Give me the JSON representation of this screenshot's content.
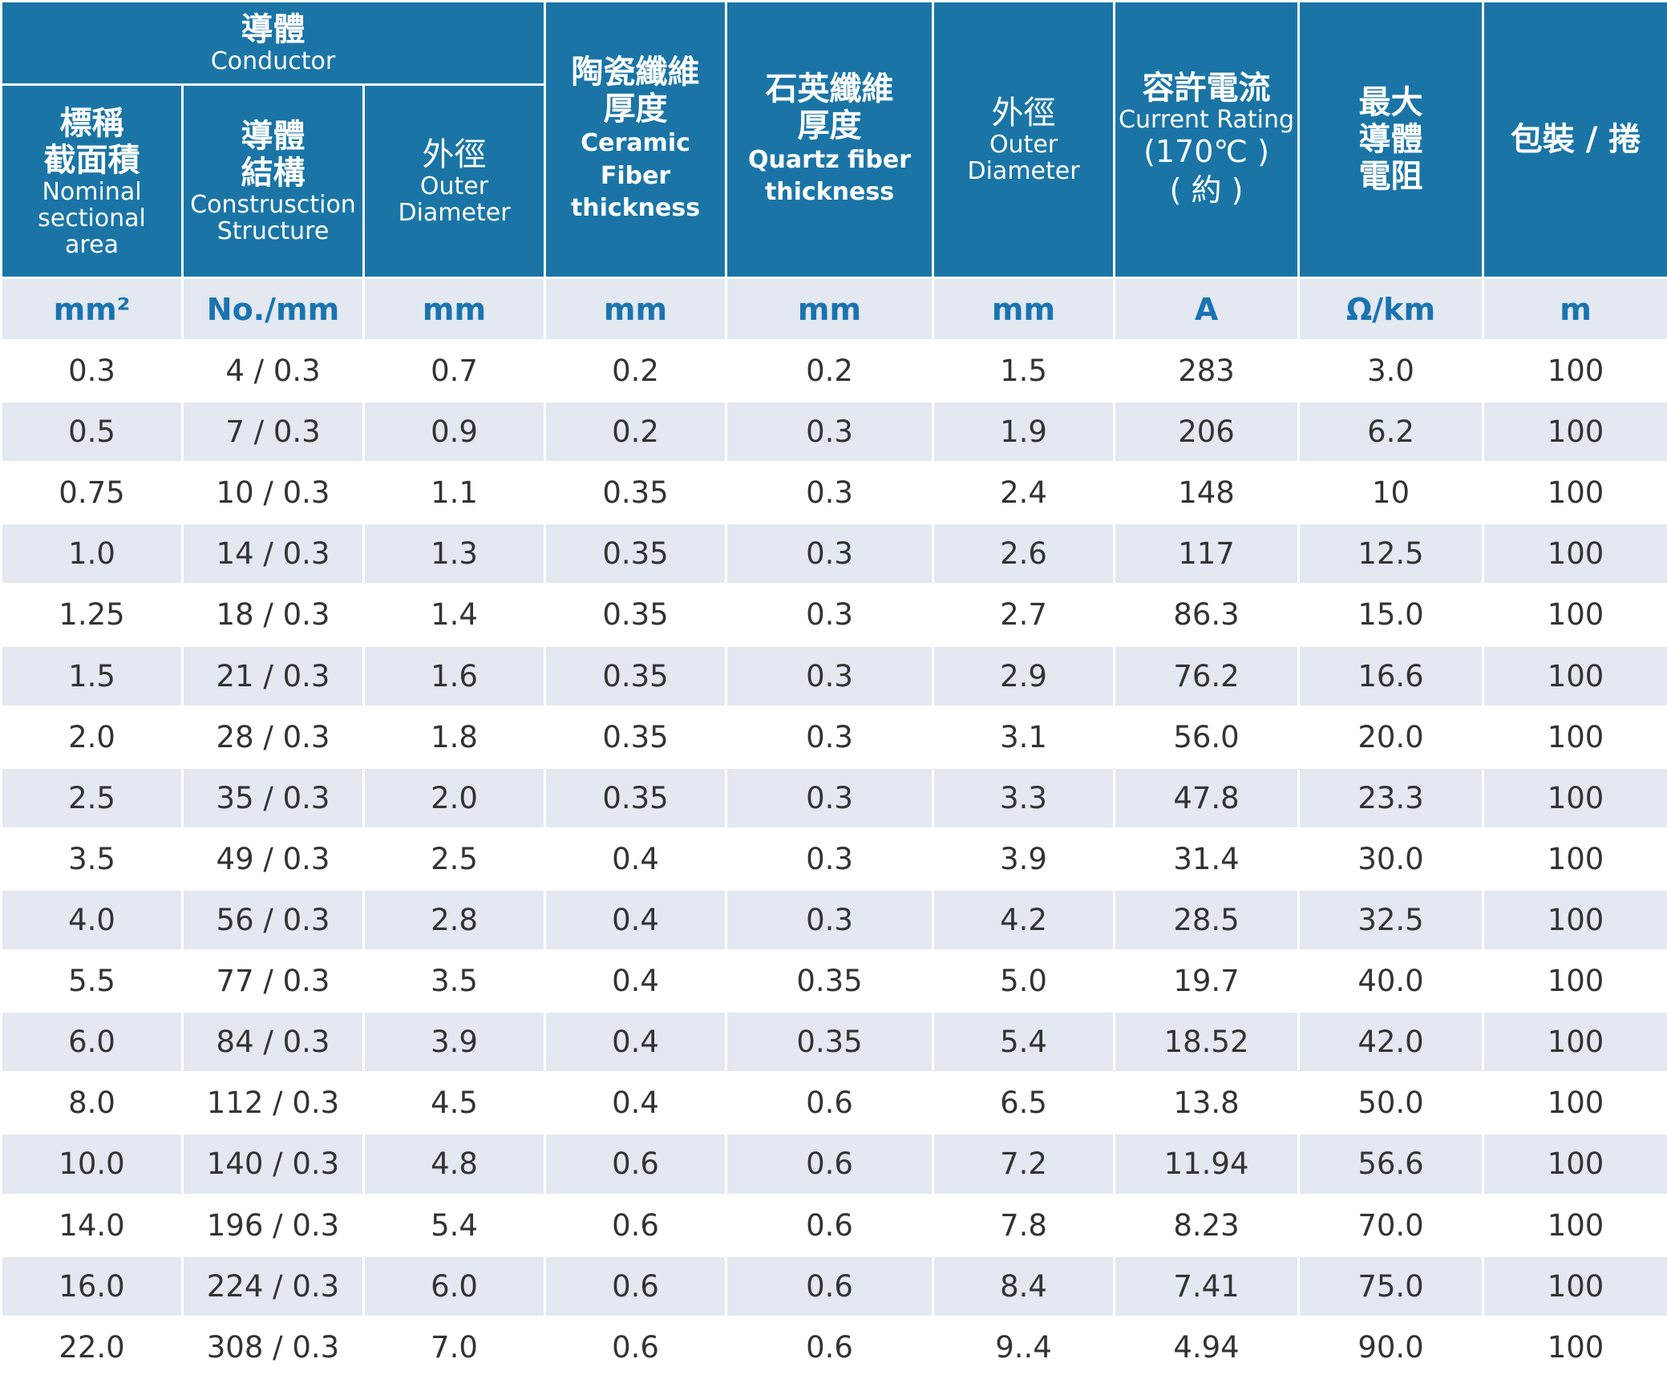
{
  "table": {
    "header": {
      "conductor": {
        "zh": "導體",
        "en": "Conductor"
      },
      "nominal": {
        "zh1": "標稱",
        "zh2": "截面積",
        "en1": "Nominal",
        "en2": "sectional",
        "en3": "area"
      },
      "construction": {
        "zh1": "導體",
        "zh2": "結構",
        "en1": "Construsction",
        "en2": "Structure"
      },
      "outer1": {
        "zh": "外徑",
        "en1": "Outer",
        "en2": "Diameter"
      },
      "ceramic": {
        "zh1": "陶瓷纖維",
        "zh2": "厚度",
        "en1": "Ceramic Fiber",
        "en2": "thickness"
      },
      "quartz": {
        "zh1": "石英纖維",
        "zh2": "厚度",
        "en1": "Quartz fiber",
        "en2": "thickness"
      },
      "outer2": {
        "zh": "外徑",
        "en1": "Outer",
        "en2": "Diameter"
      },
      "current": {
        "zh": "容許電流",
        "en": "Current Rating",
        "temp": "(170℃ )",
        "approx": "( 約 )"
      },
      "resistance": {
        "zh1": "最大",
        "zh2": "導體",
        "zh3": "電阻"
      },
      "package": {
        "zh": "包裝 / 捲"
      }
    },
    "units": [
      "mm²",
      "No./mm",
      "mm",
      "mm",
      "mm",
      "mm",
      "A",
      "Ω/km",
      "m"
    ],
    "rows": [
      [
        "0.3",
        "4 / 0.3",
        "0.7",
        "0.2",
        "0.2",
        "1.5",
        "283",
        "3.0",
        "100"
      ],
      [
        "0.5",
        "7 / 0.3",
        "0.9",
        "0.2",
        "0.3",
        "1.9",
        "206",
        "6.2",
        "100"
      ],
      [
        "0.75",
        "10 / 0.3",
        "1.1",
        "0.35",
        "0.3",
        "2.4",
        "148",
        "10",
        "100"
      ],
      [
        "1.0",
        "14 / 0.3",
        "1.3",
        "0.35",
        "0.3",
        "2.6",
        "117",
        "12.5",
        "100"
      ],
      [
        "1.25",
        "18 / 0.3",
        "1.4",
        "0.35",
        "0.3",
        "2.7",
        "86.3",
        "15.0",
        "100"
      ],
      [
        "1.5",
        "21 / 0.3",
        "1.6",
        "0.35",
        "0.3",
        "2.9",
        "76.2",
        "16.6",
        "100"
      ],
      [
        "2.0",
        "28 / 0.3",
        "1.8",
        "0.35",
        "0.3",
        "3.1",
        "56.0",
        "20.0",
        "100"
      ],
      [
        "2.5",
        "35 / 0.3",
        "2.0",
        "0.35",
        "0.3",
        "3.3",
        "47.8",
        "23.3",
        "100"
      ],
      [
        "3.5",
        "49 / 0.3",
        "2.5",
        "0.4",
        "0.3",
        "3.9",
        "31.4",
        "30.0",
        "100"
      ],
      [
        "4.0",
        "56 /  0.3",
        "2.8",
        "0.4",
        "0.3",
        "4.2",
        "28.5",
        "32.5",
        "100"
      ],
      [
        "5.5",
        "77 / 0.3",
        "3.5",
        "0.4",
        "0.35",
        "5.0",
        "19.7",
        "40.0",
        "100"
      ],
      [
        "6.0",
        "84 / 0.3",
        "3.9",
        "0.4",
        "0.35",
        "5.4",
        "18.52",
        "42.0",
        "100"
      ],
      [
        "8.0",
        "112 / 0.3",
        "4.5",
        "0.4",
        "0.6",
        "6.5",
        "13.8",
        "50.0",
        "100"
      ],
      [
        "10.0",
        "140 / 0.3",
        "4.8",
        "0.6",
        "0.6",
        "7.2",
        "11.94",
        "56.6",
        "100"
      ],
      [
        "14.0",
        "196 / 0.3",
        "5.4",
        "0.6",
        "0.6",
        "7.8",
        "8.23",
        "70.0",
        "100"
      ],
      [
        "16.0",
        "224 / 0.3",
        "6.0",
        "0.6",
        "0.6",
        "8.4",
        "7.41",
        "75.0",
        "100"
      ],
      [
        "22.0",
        "308 / 0.3",
        "7.0",
        "0.6",
        "0.6",
        "9..4",
        "4.94",
        "90.0",
        "100"
      ]
    ],
    "colors": {
      "header_bg": "#1a75a6",
      "header_text": "#ffffff",
      "unit_text": "#1a74b0",
      "stripe_bg": "#e3e8f1",
      "body_text": "#333333"
    }
  }
}
